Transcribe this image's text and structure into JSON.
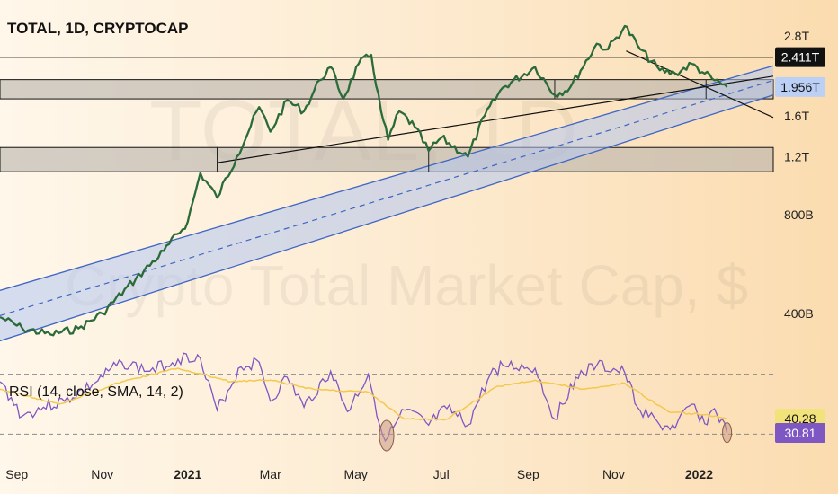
{
  "title": "TOTAL, 1D, CRYPTOCAP",
  "watermark": {
    "symbol": "TOTAL, 1D",
    "description": "Crypto Total Market Cap, $"
  },
  "colors": {
    "price_line": "#2b6b3a",
    "channel_fill": "#b3c6f0",
    "channel_edge": "#3f66c4",
    "zone_fill": "#b7b2ab",
    "rsi_line": "#7e57c2",
    "rsi_sma": "#f2c94c",
    "rsi_tag": "#7e57c2",
    "sma_tag": "#f2e27a",
    "price_tag": "#bcd0f5",
    "black_tag": "#111111"
  },
  "chart_data": [
    {
      "type": "line",
      "title": "TOTAL, 1D, CRYPTOCAP",
      "yscale": "log",
      "ylim": [
        0.29,
        3.6
      ],
      "y_ticks": [
        {
          "value": 2.8,
          "label": "2.8T"
        },
        {
          "value": 1.6,
          "label": "1.6T"
        },
        {
          "value": 1.2,
          "label": "1.2T"
        },
        {
          "value": 0.8,
          "label": "800B"
        },
        {
          "value": 0.4,
          "label": "400B"
        }
      ],
      "x_ticks": [
        {
          "date": "2020-09-01",
          "label": "Sep"
        },
        {
          "date": "2020-11-01",
          "label": "Nov"
        },
        {
          "date": "2021-01-01",
          "label": "2021"
        },
        {
          "date": "2021-03-01",
          "label": "Mar"
        },
        {
          "date": "2021-05-01",
          "label": "May"
        },
        {
          "date": "2021-07-01",
          "label": "Jul"
        },
        {
          "date": "2021-09-01",
          "label": "Sep"
        },
        {
          "date": "2021-11-01",
          "label": "Nov"
        },
        {
          "date": "2022-01-01",
          "label": "2022"
        }
      ],
      "xlim": [
        "2020-08-20",
        "2022-02-23"
      ],
      "series": [
        {
          "values": [
            {
              "x": "2020-08-20",
              "y": 0.39
            },
            {
              "x": "2020-09-05",
              "y": 0.36
            },
            {
              "x": "2020-09-25",
              "y": 0.345
            },
            {
              "x": "2020-10-15",
              "y": 0.36
            },
            {
              "x": "2020-11-01",
              "y": 0.4
            },
            {
              "x": "2020-11-25",
              "y": 0.51
            },
            {
              "x": "2020-12-15",
              "y": 0.62
            },
            {
              "x": "2021-01-01",
              "y": 0.76
            },
            {
              "x": "2021-01-10",
              "y": 1.07
            },
            {
              "x": "2021-01-22",
              "y": 0.9
            },
            {
              "x": "2021-02-05",
              "y": 1.2
            },
            {
              "x": "2021-02-21",
              "y": 1.7
            },
            {
              "x": "2021-03-01",
              "y": 1.43
            },
            {
              "x": "2021-03-13",
              "y": 1.78
            },
            {
              "x": "2021-03-25",
              "y": 1.65
            },
            {
              "x": "2021-04-05",
              "y": 2.05
            },
            {
              "x": "2021-04-13",
              "y": 2.25
            },
            {
              "x": "2021-04-22",
              "y": 1.8
            },
            {
              "x": "2021-05-03",
              "y": 2.3
            },
            {
              "x": "2021-05-12",
              "y": 2.45
            },
            {
              "x": "2021-05-19",
              "y": 1.65
            },
            {
              "x": "2021-05-24",
              "y": 1.35
            },
            {
              "x": "2021-06-01",
              "y": 1.65
            },
            {
              "x": "2021-06-12",
              "y": 1.48
            },
            {
              "x": "2021-06-22",
              "y": 1.25
            },
            {
              "x": "2021-07-01",
              "y": 1.37
            },
            {
              "x": "2021-07-20",
              "y": 1.2
            },
            {
              "x": "2021-08-01",
              "y": 1.6
            },
            {
              "x": "2021-08-14",
              "y": 1.95
            },
            {
              "x": "2021-09-06",
              "y": 2.25
            },
            {
              "x": "2021-09-20",
              "y": 1.85
            },
            {
              "x": "2021-10-01",
              "y": 1.95
            },
            {
              "x": "2021-10-20",
              "y": 2.65
            },
            {
              "x": "2021-10-28",
              "y": 2.55
            },
            {
              "x": "2021-11-09",
              "y": 3.0
            },
            {
              "x": "2021-11-20",
              "y": 2.55
            },
            {
              "x": "2021-12-04",
              "y": 2.2
            },
            {
              "x": "2021-12-15",
              "y": 2.15
            },
            {
              "x": "2021-12-27",
              "y": 2.3
            },
            {
              "x": "2022-01-05",
              "y": 2.15
            },
            {
              "x": "2022-01-12",
              "y": 2.05
            },
            {
              "x": "2022-01-21",
              "y": 1.956
            }
          ]
        }
      ],
      "horizontal_lines": [
        {
          "value": 2.411,
          "label": "2.411T"
        }
      ],
      "zones": [
        {
          "low": 1.8,
          "high": 2.06
        },
        {
          "low": 1.08,
          "high": 1.28
        }
      ],
      "channel": {
        "start": {
          "date": "2020-08-20",
          "low": 0.33,
          "high": 0.47
        },
        "end": {
          "date": "2022-02-23",
          "low": 1.85,
          "high": 2.27
        }
      },
      "trendlines": [
        {
          "from": {
            "x": "2021-11-10",
            "y": 2.52
          },
          "to": {
            "x": "2022-02-23",
            "y": 1.58
          }
        },
        {
          "from": {
            "x": "2021-01-22",
            "y": 1.15
          },
          "to": {
            "x": "2022-02-23",
            "y": 2.11
          }
        }
      ],
      "markers": [
        {
          "x": "2021-01-22",
          "from": 1.08,
          "to": 1.28
        },
        {
          "x": "2021-06-22",
          "from": 1.08,
          "to": 1.28
        },
        {
          "x": "2021-09-20",
          "from": 1.8,
          "to": 2.06
        },
        {
          "x": "2022-01-06",
          "from": 1.8,
          "to": 2.06
        }
      ],
      "last_value": {
        "value": 1.956,
        "label": "1.956T"
      }
    },
    {
      "type": "line",
      "title": "RSI (14, close, SMA, 14, 2)",
      "ylim": [
        20,
        80
      ],
      "guide_levels": [
        70,
        30
      ],
      "series": [
        {
          "name": "RSI",
          "values": [
            {
              "x": "2020-08-20",
              "y": 65
            },
            {
              "x": "2020-09-05",
              "y": 42
            },
            {
              "x": "2020-09-20",
              "y": 48
            },
            {
              "x": "2020-10-05",
              "y": 52
            },
            {
              "x": "2020-10-25",
              "y": 63
            },
            {
              "x": "2020-11-15",
              "y": 78
            },
            {
              "x": "2020-12-05",
              "y": 72
            },
            {
              "x": "2020-12-25",
              "y": 80
            },
            {
              "x": "2021-01-08",
              "y": 83
            },
            {
              "x": "2021-01-22",
              "y": 46
            },
            {
              "x": "2021-02-08",
              "y": 75
            },
            {
              "x": "2021-02-21",
              "y": 78
            },
            {
              "x": "2021-03-01",
              "y": 52
            },
            {
              "x": "2021-03-13",
              "y": 68
            },
            {
              "x": "2021-03-25",
              "y": 48
            },
            {
              "x": "2021-04-13",
              "y": 72
            },
            {
              "x": "2021-04-25",
              "y": 45
            },
            {
              "x": "2021-05-10",
              "y": 70
            },
            {
              "x": "2021-05-20",
              "y": 30
            },
            {
              "x": "2021-05-24",
              "y": 28
            },
            {
              "x": "2021-06-05",
              "y": 46
            },
            {
              "x": "2021-06-22",
              "y": 36
            },
            {
              "x": "2021-07-05",
              "y": 47
            },
            {
              "x": "2021-07-20",
              "y": 36
            },
            {
              "x": "2021-08-05",
              "y": 70
            },
            {
              "x": "2021-08-14",
              "y": 76
            },
            {
              "x": "2021-09-06",
              "y": 74
            },
            {
              "x": "2021-09-20",
              "y": 40
            },
            {
              "x": "2021-10-05",
              "y": 68
            },
            {
              "x": "2021-10-20",
              "y": 76
            },
            {
              "x": "2021-11-09",
              "y": 71
            },
            {
              "x": "2021-11-18",
              "y": 48
            },
            {
              "x": "2021-12-04",
              "y": 36
            },
            {
              "x": "2021-12-15",
              "y": 34
            },
            {
              "x": "2021-12-27",
              "y": 50
            },
            {
              "x": "2022-01-05",
              "y": 37
            },
            {
              "x": "2022-01-12",
              "y": 47
            },
            {
              "x": "2022-01-21",
              "y": 30.81
            }
          ]
        },
        {
          "name": "RSI-based MA",
          "values": [
            {
              "x": "2020-08-20",
              "y": 60
            },
            {
              "x": "2020-10-01",
              "y": 50
            },
            {
              "x": "2020-11-15",
              "y": 65
            },
            {
              "x": "2020-12-25",
              "y": 74
            },
            {
              "x": "2021-02-01",
              "y": 65
            },
            {
              "x": "2021-03-01",
              "y": 66
            },
            {
              "x": "2021-04-01",
              "y": 60
            },
            {
              "x": "2021-05-10",
              "y": 58
            },
            {
              "x": "2021-06-05",
              "y": 40
            },
            {
              "x": "2021-07-05",
              "y": 40
            },
            {
              "x": "2021-08-10",
              "y": 62
            },
            {
              "x": "2021-09-06",
              "y": 66
            },
            {
              "x": "2021-10-10",
              "y": 60
            },
            {
              "x": "2021-11-09",
              "y": 64
            },
            {
              "x": "2021-12-10",
              "y": 45
            },
            {
              "x": "2022-01-05",
              "y": 43
            },
            {
              "x": "2022-01-21",
              "y": 40.28
            }
          ]
        }
      ],
      "oversold_markers": [
        {
          "x": "2021-05-23",
          "y": 29
        },
        {
          "x": "2022-01-21",
          "y": 31
        }
      ],
      "last_values": [
        {
          "series": "RSI-based MA",
          "value": 40.28,
          "label": "40.28"
        },
        {
          "series": "RSI",
          "value": 30.81,
          "label": "30.81"
        }
      ]
    }
  ]
}
